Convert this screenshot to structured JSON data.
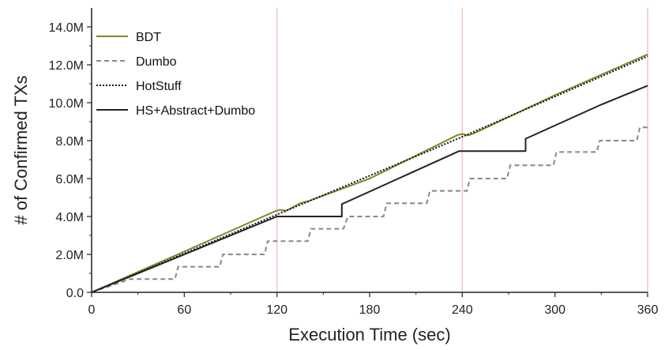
{
  "chart_data": {
    "type": "line",
    "title": "",
    "xlabel": "Execution Time (sec)",
    "ylabel": "# of Confirmed TXs",
    "xlim": [
      0,
      360
    ],
    "ylim": [
      0,
      15
    ],
    "x_ticks": [
      0,
      60,
      120,
      180,
      240,
      300,
      360
    ],
    "x_tick_labels": [
      "0",
      "60",
      "120",
      "180",
      "240",
      "300",
      "360"
    ],
    "y_ticks": [
      0,
      2,
      4,
      6,
      8,
      10,
      12,
      14
    ],
    "y_tick_labels": [
      "0.0",
      "2.0M",
      "4.0M",
      "6.0M",
      "8.0M",
      "10.0M",
      "12.0M",
      "14.0M"
    ],
    "reference_lines_x": [
      120,
      240,
      360
    ],
    "reference_line_color": "#f2c4c4",
    "legend_position": "top-left",
    "series": [
      {
        "name": "BDT",
        "color": "#7a8a2a",
        "style": "solid",
        "x": [
          0,
          60,
          118,
          122,
          126,
          135,
          140,
          180,
          237,
          240,
          244,
          248,
          300,
          360
        ],
        "y": [
          0,
          2.15,
          4.25,
          4.35,
          4.3,
          4.7,
          4.8,
          6.0,
          8.3,
          8.35,
          8.28,
          8.4,
          10.4,
          12.55
        ]
      },
      {
        "name": "Dumbo",
        "color": "#888888",
        "style": "dashed",
        "x": [
          0,
          25,
          28,
          30,
          54,
          56,
          83,
          85,
          112,
          114,
          140,
          142,
          163,
          166,
          189,
          191,
          217,
          219,
          243,
          245,
          269,
          271,
          299,
          301,
          327,
          329,
          353,
          355,
          360
        ],
        "y": [
          0,
          0.7,
          0.7,
          0.7,
          0.7,
          1.35,
          1.35,
          2.0,
          2.0,
          2.7,
          2.7,
          3.35,
          3.35,
          4.0,
          4.0,
          4.7,
          4.7,
          5.35,
          5.35,
          6.0,
          6.0,
          6.7,
          6.7,
          7.4,
          7.4,
          8.0,
          8.0,
          8.7,
          8.7
        ]
      },
      {
        "name": "HotStuff",
        "color": "#111111",
        "style": "dotted",
        "x": [
          0,
          120,
          240,
          360
        ],
        "y": [
          0,
          4.1,
          8.2,
          12.45
        ]
      },
      {
        "name": "HS+Abstract+Dumbo",
        "color": "#222222",
        "style": "solid",
        "x": [
          0,
          120,
          122,
          162,
          162,
          238,
          240,
          281,
          281,
          330,
          360
        ],
        "y": [
          0,
          4.0,
          4.0,
          4.0,
          4.65,
          7.45,
          7.45,
          7.45,
          8.1,
          9.9,
          10.9
        ]
      }
    ]
  }
}
